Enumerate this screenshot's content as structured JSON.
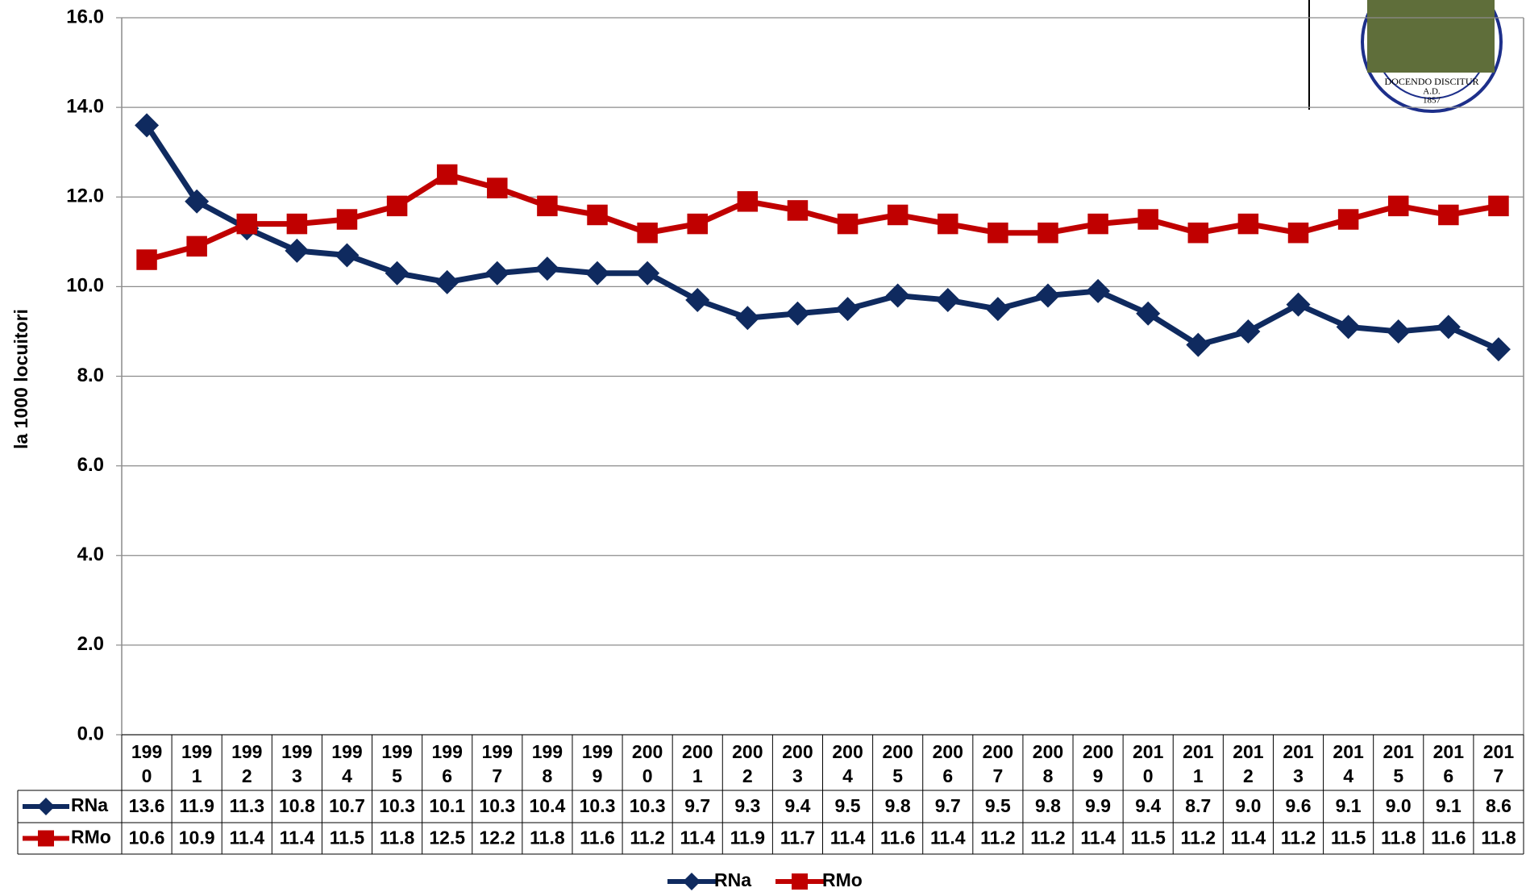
{
  "chart_data": {
    "type": "line",
    "y_label": "la 1000 locuitori",
    "categories": [
      "1990",
      "1991",
      "1992",
      "1993",
      "1994",
      "1995",
      "1996",
      "1997",
      "1998",
      "1999",
      "2000",
      "2001",
      "2002",
      "2003",
      "2004",
      "2005",
      "2006",
      "2007",
      "2008",
      "2009",
      "2010",
      "2011",
      "2012",
      "2013",
      "2014",
      "2015",
      "2016",
      "2017"
    ],
    "series": [
      {
        "name": "RNa",
        "color": "#0f2a5f",
        "marker": "diamond",
        "values": [
          13.6,
          11.9,
          11.3,
          10.8,
          10.7,
          10.3,
          10.1,
          10.3,
          10.4,
          10.3,
          10.3,
          9.7,
          9.3,
          9.4,
          9.5,
          9.8,
          9.7,
          9.5,
          9.8,
          9.9,
          9.4,
          8.7,
          9.0,
          9.6,
          9.1,
          9.0,
          9.1,
          8.6
        ],
        "value_labels": [
          "13.6",
          "11.9",
          "11.3",
          "10.8",
          "10.7",
          "10.3",
          "10.1",
          "10.3",
          "10.4",
          "10.3",
          "10.3",
          "9.7",
          "9.3",
          "9.4",
          "9.5",
          "9.8",
          "9.7",
          "9.5",
          "9.8",
          "9.9",
          "9.4",
          "8.7",
          "9.0",
          "9.6",
          "9.1",
          "9.0",
          "9.1",
          "8.6"
        ]
      },
      {
        "name": "RMo",
        "color": "#c00000",
        "marker": "square",
        "values": [
          10.6,
          10.9,
          11.4,
          11.4,
          11.5,
          11.8,
          12.5,
          12.2,
          11.8,
          11.6,
          11.2,
          11.4,
          11.9,
          11.7,
          11.4,
          11.6,
          11.4,
          11.2,
          11.2,
          11.4,
          11.5,
          11.2,
          11.4,
          11.2,
          11.5,
          11.8,
          11.6,
          11.8
        ],
        "value_labels": [
          "10.6",
          "10.9",
          "11.4",
          "11.4",
          "11.5",
          "11.8",
          "12.5",
          "12.2",
          "11.8",
          "11.6",
          "11.2",
          "11.4",
          "11.9",
          "11.7",
          "11.4",
          "11.6",
          "11.4",
          "11.2",
          "11.2",
          "11.4",
          "11.5",
          "11.2",
          "11.4",
          "11.2",
          "11.5",
          "11.8",
          "11.6",
          "11.8"
        ]
      }
    ],
    "ylim": [
      0,
      16
    ],
    "yticks": [
      {
        "value": 0,
        "label": "0.0"
      },
      {
        "value": 2,
        "label": "2.0"
      },
      {
        "value": 4,
        "label": "4.0"
      },
      {
        "value": 6,
        "label": "6.0"
      },
      {
        "value": 8,
        "label": "8.0"
      },
      {
        "value": 10,
        "label": "10.0"
      },
      {
        "value": 12,
        "label": "12.0"
      },
      {
        "value": 14,
        "label": "14.0"
      },
      {
        "value": 16,
        "label": "16.0"
      }
    ],
    "grid": true,
    "legend": "bottom",
    "logo": {
      "motto": "DOCENDO DISCITUR",
      "ad": "A.D.",
      "year": "1857"
    }
  }
}
